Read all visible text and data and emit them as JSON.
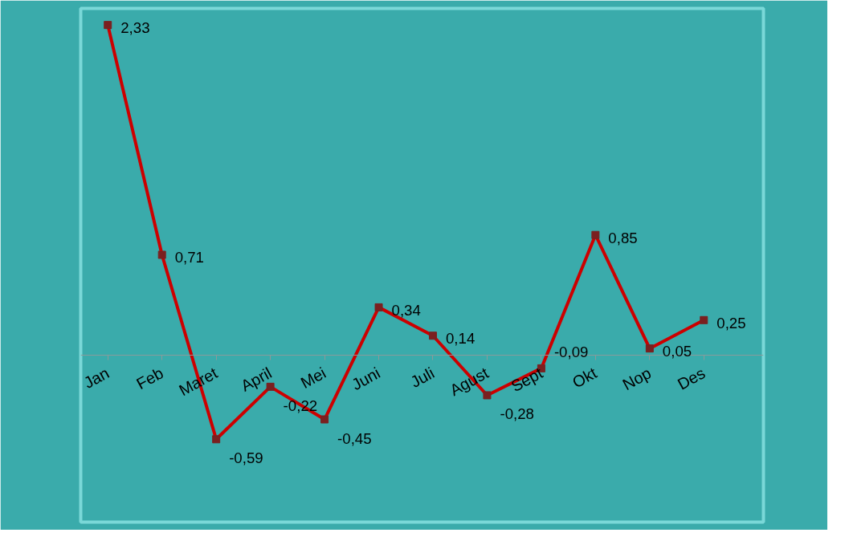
{
  "chart_data": {
    "type": "line",
    "categories": [
      "Jan",
      "Feb",
      "Maret",
      "April",
      "Mei",
      "Juni",
      "Juli",
      "Agust",
      "Sept",
      "Okt",
      "Nop",
      "Des"
    ],
    "series": [
      {
        "color": "#cc0000",
        "values": [
          2.33,
          0.71,
          -0.59,
          -0.22,
          -0.45,
          0.34,
          0.14,
          -0.28,
          -0.09,
          0.85,
          0.05,
          0.25
        ],
        "value_labels": [
          "2,33",
          "0,71",
          "-0,59",
          "-0,22",
          "-0,45",
          "0,34",
          "0,14",
          "-0,28",
          "-0,09",
          "0,85",
          "0,05",
          "0,25"
        ]
      }
    ],
    "marker": "square",
    "line_style": "solid",
    "grid": false
  }
}
